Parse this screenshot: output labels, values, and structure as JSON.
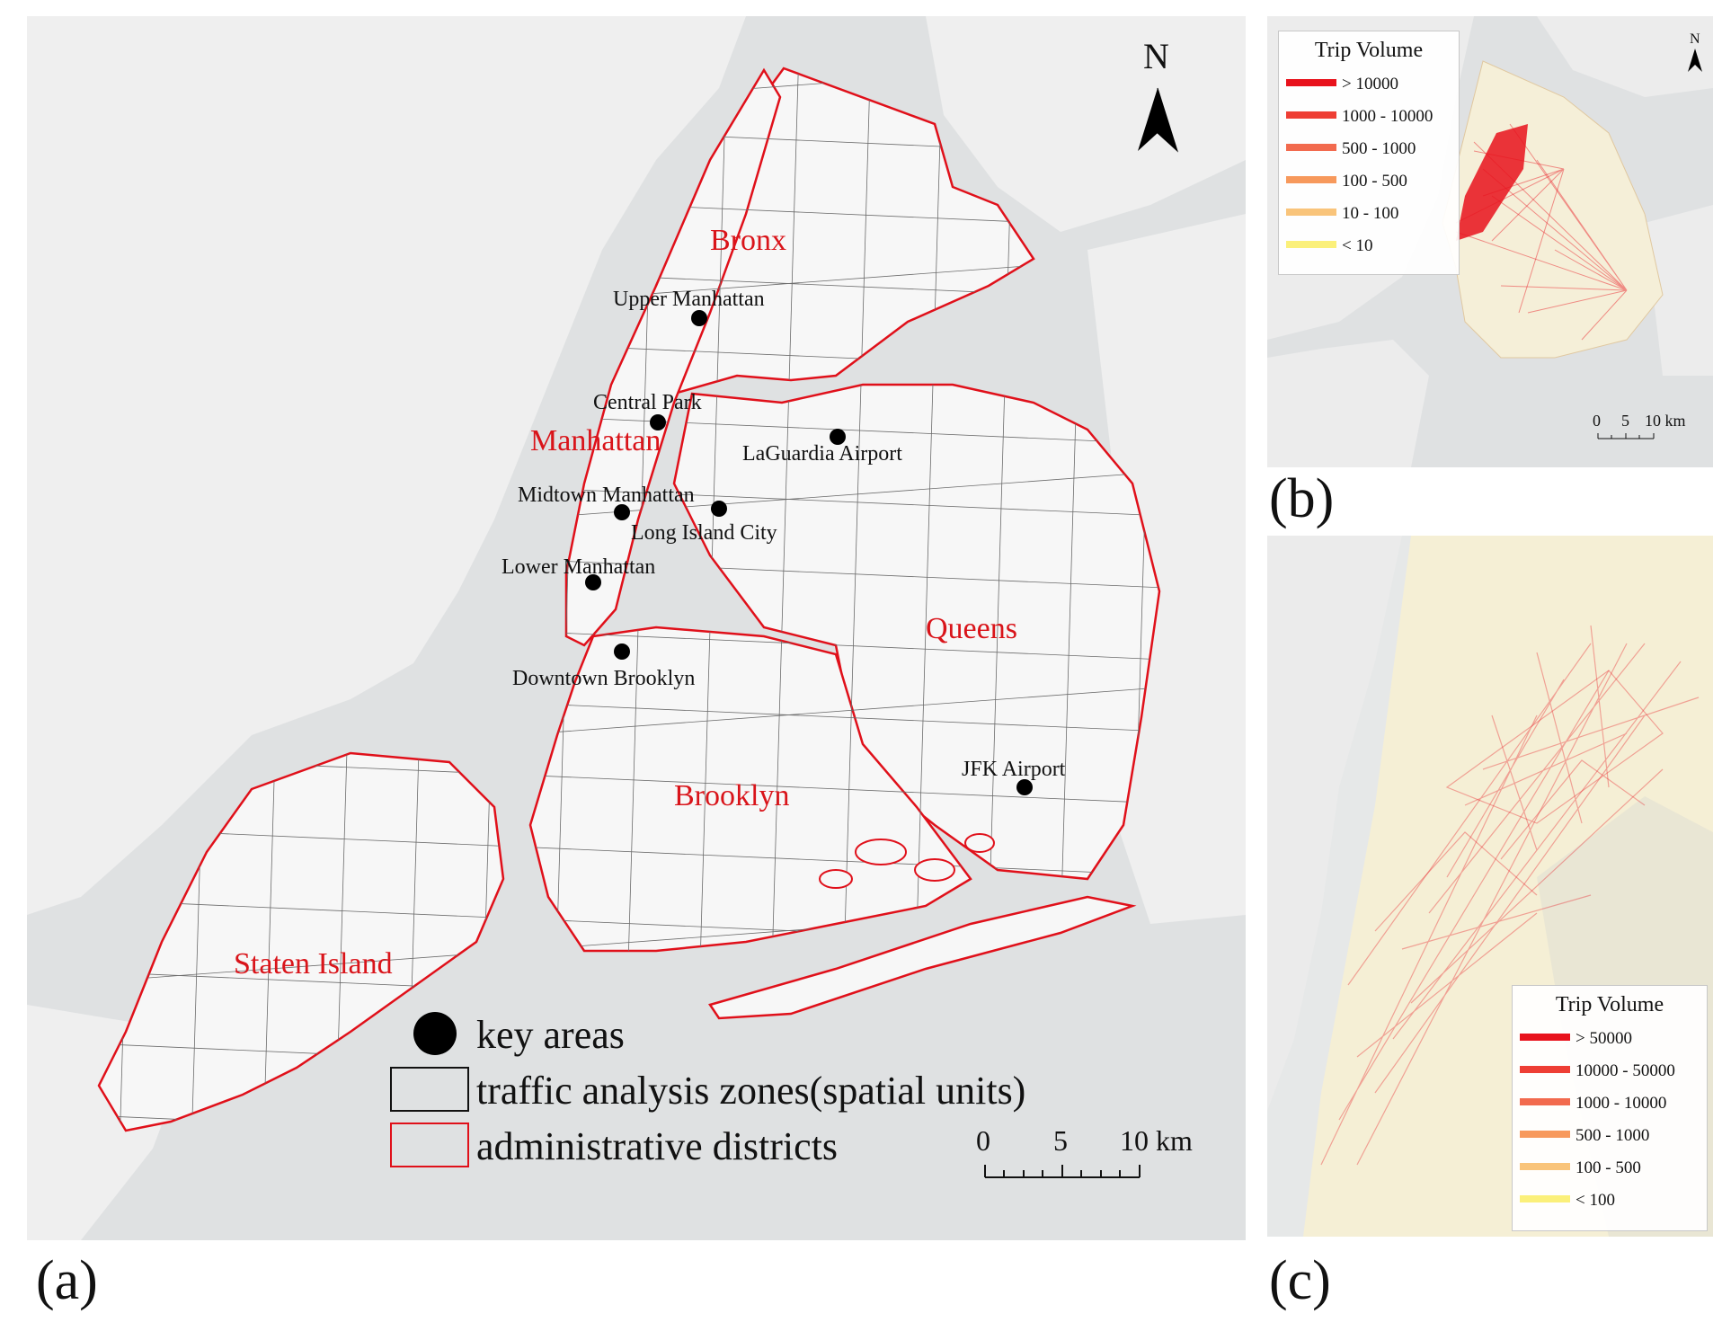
{
  "figure": {
    "panel_labels": {
      "a": "(a)",
      "b": "(b)",
      "c": "(c)"
    },
    "colors": {
      "water": "#dfe1e2",
      "land": "#f3f3f3",
      "district_border": "#e0101a",
      "zone_border": "#5a5a5a",
      "key_area": "#000000"
    }
  },
  "panel_a": {
    "north_label": "N",
    "district_names": [
      "Bronx",
      "Manhattan",
      "Queens",
      "Brooklyn",
      "Staten Island"
    ],
    "key_areas": [
      "Upper Manhattan",
      "Central Park",
      "LaGuardia Airport",
      "Midtown Manhattan",
      "Long Island City",
      "Lower Manhattan",
      "Downtown Brooklyn",
      "JFK Airport"
    ],
    "legend": {
      "key_areas": "key areas",
      "zones": "traffic analysis zones(spatial units)",
      "districts": "administrative districts"
    },
    "scale_bar": {
      "ticks": [
        "0",
        "5",
        "10 km"
      ]
    }
  },
  "panel_b": {
    "north_label": "N",
    "legend_title": "Trip Volume",
    "legend_items": [
      {
        "label": "> 10000",
        "color": "#e8121c"
      },
      {
        "label": "1000 - 10000",
        "color": "#ee3e34"
      },
      {
        "label": "500 - 1000",
        "color": "#f26a4e"
      },
      {
        "label": "100 - 500",
        "color": "#f7995c"
      },
      {
        "label": "10 - 100",
        "color": "#f9c47a"
      },
      {
        "label": "< 10",
        "color": "#fbf07a"
      }
    ],
    "scale_bar": {
      "ticks": [
        "0",
        "5",
        "10 km"
      ]
    }
  },
  "panel_c": {
    "legend_title": "Trip Volume",
    "legend_items": [
      {
        "label": "> 50000",
        "color": "#e8121c"
      },
      {
        "label": "10000 - 50000",
        "color": "#ee3e34"
      },
      {
        "label": "1000 - 10000",
        "color": "#f26a4e"
      },
      {
        "label": "500 - 1000",
        "color": "#f7995c"
      },
      {
        "label": "100 - 500",
        "color": "#f9c47a"
      },
      {
        "label": "< 100",
        "color": "#fbf07a"
      }
    ]
  }
}
